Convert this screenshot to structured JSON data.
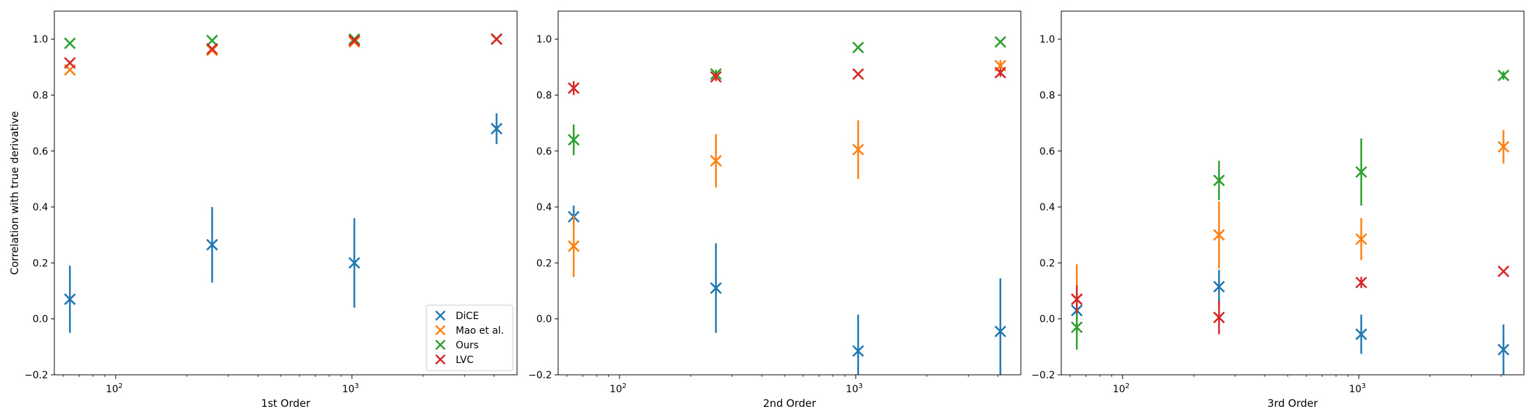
{
  "chart_data": [
    {
      "type": "scatter",
      "xlabel": "1st Order",
      "ylabel": "Correlation with true derivative",
      "xscale": "log",
      "xlim": [
        55,
        5000
      ],
      "ylim": [
        -0.2,
        1.1
      ],
      "yticks": [
        -0.2,
        0.0,
        0.2,
        0.4,
        0.6,
        0.8,
        1.0
      ],
      "ytick_labels": [
        "−0.2",
        "0.0",
        "0.2",
        "0.4",
        "0.6",
        "0.8",
        "1.0"
      ],
      "xticks": [
        {
          "value": 100,
          "label": "10",
          "exp": "2"
        },
        {
          "value": 1000,
          "label": "10",
          "exp": "3"
        }
      ],
      "grid": false,
      "legend": {
        "placement": "lower-right",
        "entries": [
          "DiCE",
          "Mao et al.",
          "Ours",
          "LVC"
        ]
      },
      "series": [
        {
          "name": "DiCE",
          "color": "#1f77b4",
          "x": [
            64,
            256,
            1024,
            4096
          ],
          "y": [
            0.07,
            0.265,
            0.2,
            0.68
          ],
          "err": [
            0.12,
            0.135,
            0.16,
            0.055
          ]
        },
        {
          "name": "Mao et al.",
          "color": "#ff7f0e",
          "x": [
            64,
            256,
            1024,
            4096
          ],
          "y": [
            0.89,
            0.96,
            0.99,
            1.0
          ],
          "err": [
            0.0,
            0.0,
            0.0,
            0.0
          ]
        },
        {
          "name": "Ours",
          "color": "#2ca02c",
          "x": [
            64,
            256,
            1024,
            4096
          ],
          "y": [
            0.985,
            0.995,
            1.0,
            1.0
          ],
          "err": [
            0.0,
            0.0,
            0.0,
            0.0
          ]
        },
        {
          "name": "LVC",
          "color": "#d62728",
          "x": [
            64,
            256,
            1024,
            4096
          ],
          "y": [
            0.915,
            0.965,
            0.995,
            1.0
          ],
          "err": [
            0.0,
            0.0,
            0.0,
            0.0
          ]
        }
      ]
    },
    {
      "type": "scatter",
      "xlabel": "2nd Order",
      "ylabel": "",
      "xscale": "log",
      "xlim": [
        55,
        5000
      ],
      "ylim": [
        -0.2,
        1.1
      ],
      "yticks": [
        -0.2,
        0.0,
        0.2,
        0.4,
        0.6,
        0.8,
        1.0
      ],
      "ytick_labels": [
        "−0.2",
        "0.0",
        "0.2",
        "0.4",
        "0.6",
        "0.8",
        "1.0"
      ],
      "xticks": [
        {
          "value": 100,
          "label": "10",
          "exp": "2"
        },
        {
          "value": 1000,
          "label": "10",
          "exp": "3"
        }
      ],
      "grid": false,
      "series": [
        {
          "name": "DiCE",
          "color": "#1f77b4",
          "x": [
            64,
            256,
            1024,
            4096
          ],
          "y": [
            0.365,
            0.11,
            -0.115,
            -0.045
          ],
          "err": [
            0.04,
            0.16,
            0.13,
            0.19
          ]
        },
        {
          "name": "Mao et al.",
          "color": "#ff7f0e",
          "x": [
            64,
            256,
            1024,
            4096
          ],
          "y": [
            0.26,
            0.565,
            0.605,
            0.905
          ],
          "err": [
            0.11,
            0.095,
            0.105,
            0.02
          ]
        },
        {
          "name": "Ours",
          "color": "#2ca02c",
          "x": [
            64,
            256,
            1024,
            4096
          ],
          "y": [
            0.64,
            0.875,
            0.97,
            0.99
          ],
          "err": [
            0.055,
            0.015,
            0.0,
            0.0
          ]
        },
        {
          "name": "LVC",
          "color": "#d62728",
          "x": [
            64,
            256,
            1024,
            4096
          ],
          "y": [
            0.825,
            0.865,
            0.875,
            0.88
          ],
          "err": [
            0.025,
            0.015,
            0.0,
            0.015
          ]
        }
      ]
    },
    {
      "type": "scatter",
      "xlabel": "3rd Order",
      "ylabel": "",
      "xscale": "log",
      "xlim": [
        55,
        5000
      ],
      "ylim": [
        -0.2,
        1.1
      ],
      "yticks": [
        -0.2,
        0.0,
        0.2,
        0.4,
        0.6,
        0.8,
        1.0
      ],
      "ytick_labels": [
        "−0.2",
        "0.0",
        "0.2",
        "0.4",
        "0.6",
        "0.8",
        "1.0"
      ],
      "xticks": [
        {
          "value": 100,
          "label": "10",
          "exp": "2"
        },
        {
          "value": 1000,
          "label": "10",
          "exp": "3"
        }
      ],
      "grid": false,
      "series": [
        {
          "name": "DiCE",
          "color": "#1f77b4",
          "x": [
            64,
            256,
            1024,
            4096
          ],
          "y": [
            0.03,
            0.115,
            -0.055,
            -0.11
          ],
          "err": [
            0.07,
            0.06,
            0.07,
            0.09
          ]
        },
        {
          "name": "Mao et al.",
          "color": "#ff7f0e",
          "x": [
            64,
            256,
            1024,
            4096
          ],
          "y": [
            0.07,
            0.3,
            0.285,
            0.615
          ],
          "err": [
            0.125,
            0.12,
            0.075,
            0.06
          ]
        },
        {
          "name": "Ours",
          "color": "#2ca02c",
          "x": [
            64,
            256,
            1024,
            4096
          ],
          "y": [
            -0.03,
            0.495,
            0.525,
            0.87
          ],
          "err": [
            0.08,
            0.07,
            0.12,
            0.015
          ]
        },
        {
          "name": "LVC",
          "color": "#d62728",
          "x": [
            64,
            256,
            1024,
            4096
          ],
          "y": [
            0.07,
            0.005,
            0.13,
            0.17
          ],
          "err": [
            0.05,
            0.06,
            0.02,
            0.0
          ]
        }
      ]
    }
  ]
}
